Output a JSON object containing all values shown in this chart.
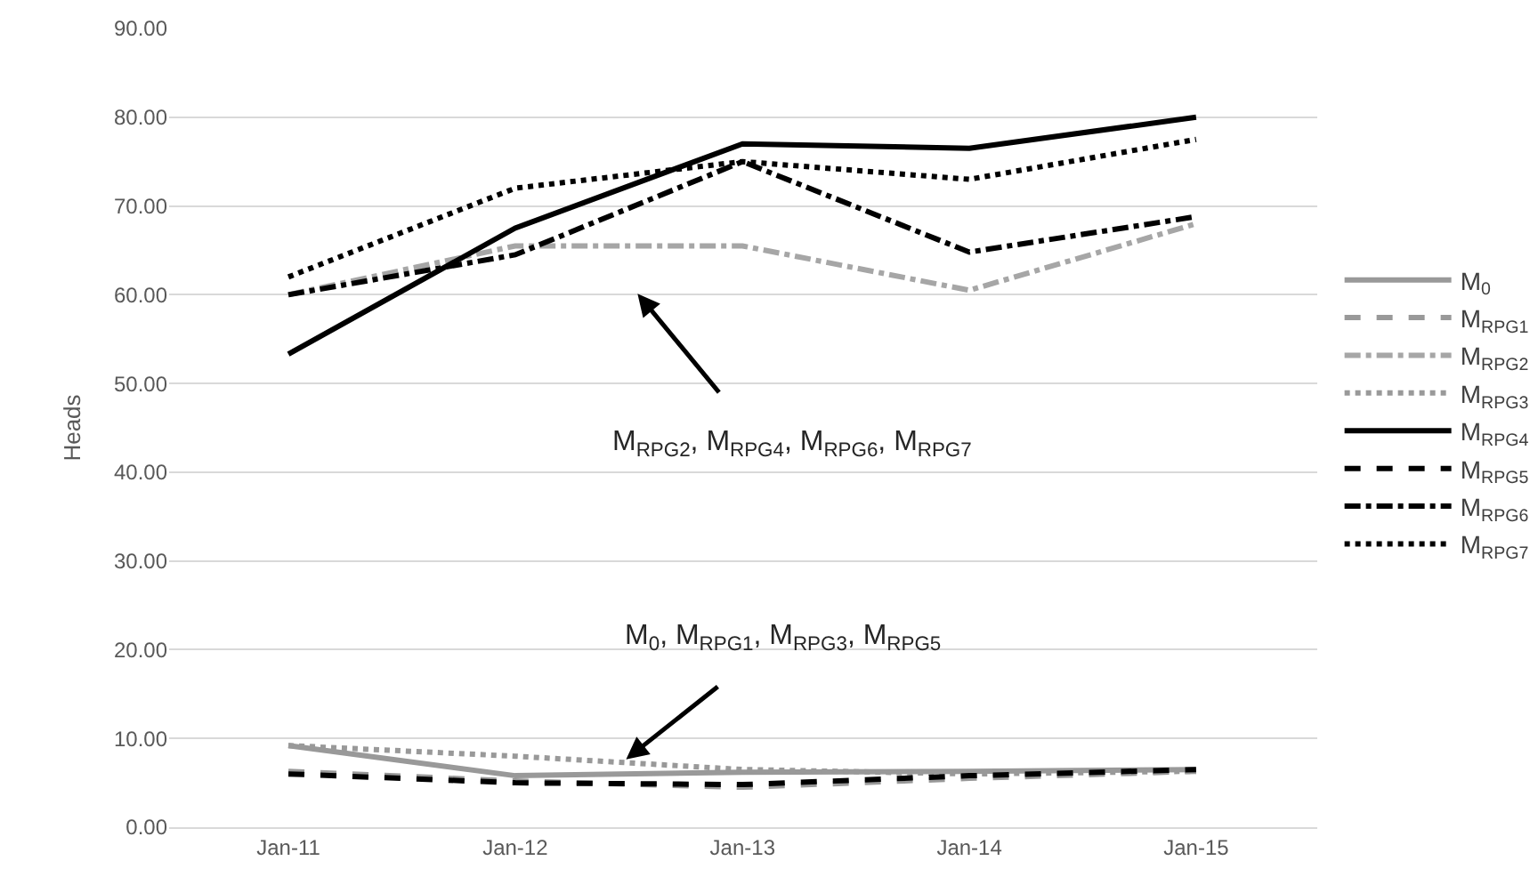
{
  "chart_data": {
    "type": "line",
    "ylabel": "Heads",
    "x": [
      "2011-01",
      "2012-01",
      "2013-01",
      "2014-01",
      "2015-01"
    ],
    "xlim": [
      "2010-06-23",
      "2015-07-15"
    ],
    "xticks": [
      {
        "value": "2011-01",
        "label": "Jan-11"
      },
      {
        "value": "2012-01",
        "label": "Jan-12"
      },
      {
        "value": "2013-01",
        "label": "Jan-13"
      },
      {
        "value": "2014-01",
        "label": "Jan-14"
      },
      {
        "value": "2015-01",
        "label": "Jan-15"
      }
    ],
    "ylim": [
      0,
      90
    ],
    "yticks": [
      {
        "value": 0,
        "label": "0.00"
      },
      {
        "value": 10,
        "label": "10.00"
      },
      {
        "value": 20,
        "label": "20.00"
      },
      {
        "value": 30,
        "label": "30.00"
      },
      {
        "value": 40,
        "label": "40.00"
      },
      {
        "value": 50,
        "label": "50.00"
      },
      {
        "value": 60,
        "label": "60.00"
      },
      {
        "value": 70,
        "label": "70.00"
      },
      {
        "value": 80,
        "label": "80.00"
      },
      {
        "value": 90,
        "label": "90.00"
      }
    ],
    "grid": "y",
    "legend": "right",
    "marker": "none",
    "series": [
      {
        "name": "M$_{0}$",
        "color": "#999999",
        "line_style": "solid",
        "values": [
          9.2,
          5.8,
          6.2,
          6.3,
          6.5
        ]
      },
      {
        "name": "M$_{RPG1}$",
        "color": "#999999",
        "line_style": "dashed",
        "values": [
          6.3,
          5.2,
          4.5,
          5.5,
          6.3
        ]
      },
      {
        "name": "M$_{RPG2}$",
        "color": "#a6a6a6",
        "line_style": "dashdot",
        "values": [
          60,
          65.5,
          65.5,
          60.5,
          68
        ]
      },
      {
        "name": "M$_{RPG3}$",
        "color": "#999999",
        "line_style": "dotted",
        "values": [
          9.2,
          8,
          6.5,
          6,
          6.3
        ]
      },
      {
        "name": "M$_{RPG4}$",
        "color": "#000000",
        "line_style": "solid",
        "values": [
          53.3,
          67.5,
          77,
          76.5,
          80
        ]
      },
      {
        "name": "M$_{RPG5}$",
        "color": "#000000",
        "line_style": "dashed",
        "values": [
          6,
          5,
          4.8,
          5.8,
          6.5
        ]
      },
      {
        "name": "M$_{RPG6}$",
        "color": "#000000",
        "line_style": "dashdot",
        "values": [
          60,
          64.5,
          75,
          64.8,
          68.8
        ]
      },
      {
        "name": "M$_{RPG7}$",
        "color": "#000000",
        "line_style": "dotted",
        "values": [
          62,
          72,
          75,
          73,
          77.5
        ]
      }
    ],
    "annotations": [
      "M$_{RPG2}$, M$_{RPG4}$, M$_{RPG6}$, M$_{RPG7}$",
      "M$_{0}$, M$_{RPG1}$, M$_{RPG3}$, M$_{RPG5}$"
    ]
  }
}
